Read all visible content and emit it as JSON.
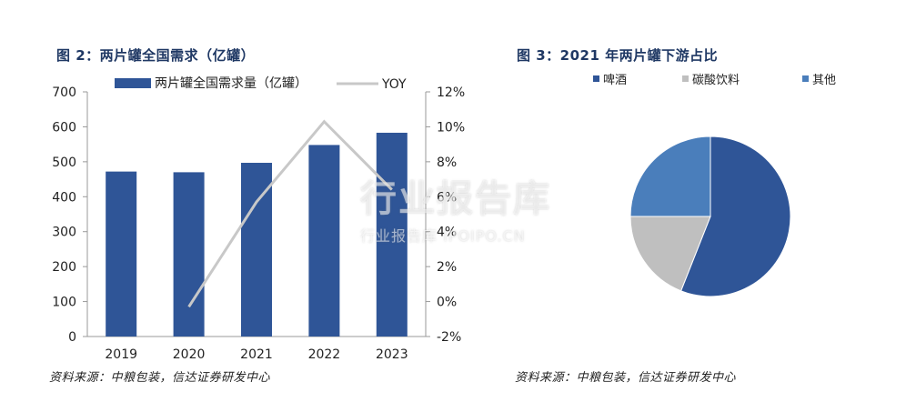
{
  "left_figure": {
    "title": "图 2：两片罐全国需求（亿罐）",
    "source": "资料来源：中粮包装，信达证券研发中心"
  },
  "right_figure": {
    "title": "图 3：2021 年两片罐下游占比",
    "source": "资料来源：中粮包装，信达证券研发中心"
  },
  "watermark": {
    "main": "行业报告库",
    "sub": "行业报告库 IPOIPO.CN"
  },
  "chart_data": [
    {
      "type": "bar",
      "categories": [
        "2019",
        "2020",
        "2021",
        "2022",
        "2023"
      ],
      "series": [
        {
          "name": "两片罐全国需求量（亿罐）",
          "values": [
            472,
            470,
            497,
            548,
            583
          ],
          "color": "#2f5597",
          "axis": "left"
        },
        {
          "name": "YOY",
          "type": "line",
          "values": [
            null,
            -0.3,
            5.7,
            10.3,
            6.4
          ],
          "color": "#c8c8c8",
          "axis": "right"
        }
      ],
      "y_left": {
        "min": 0,
        "max": 700,
        "step": 100,
        "ticks": [
          "0",
          "100",
          "200",
          "300",
          "400",
          "500",
          "600",
          "700"
        ]
      },
      "y_right": {
        "min": -2,
        "max": 12,
        "step": 2,
        "ticks": [
          "-2%",
          "0%",
          "2%",
          "4%",
          "6%",
          "8%",
          "10%",
          "12%"
        ]
      },
      "legend_position": "top"
    },
    {
      "type": "pie",
      "labels": [
        "啤酒",
        "碳酸饮料",
        "其他"
      ],
      "values": [
        56,
        19,
        25
      ],
      "colors": [
        "#2f5597",
        "#bfbfbf",
        "#4a7ebb"
      ],
      "legend_position": "top"
    }
  ]
}
